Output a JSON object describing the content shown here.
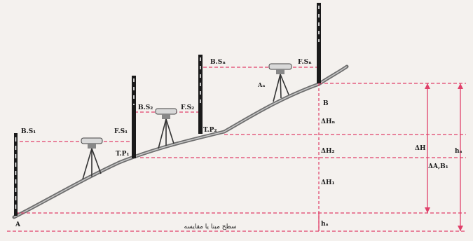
{
  "labels": {
    "bs1": "B.S₁",
    "fs1": "F.S₁",
    "tp1": "T.P₁",
    "bs2": "B.S₂",
    "fs2": "F.S₂",
    "tp2": "T.P₂",
    "bsn": "B.Sₙ",
    "fsn": "F.Sₙ",
    "an": "Aₙ",
    "a": "A",
    "b": "B",
    "dhn": "ΔHₙ",
    "dh2": "ΔH₂",
    "dh1": "ΔH₁",
    "dh": "ΔH",
    "hab": "ΔA,B₁",
    "ha": "hₐ",
    "ha_bottom": "hₐ",
    "datum": "سطح مبنا یا مقایسه"
  },
  "colors": {
    "dashed_lines": "#e0406a",
    "ground": "#6e6e6e",
    "rods": "#1a1a1a"
  }
}
